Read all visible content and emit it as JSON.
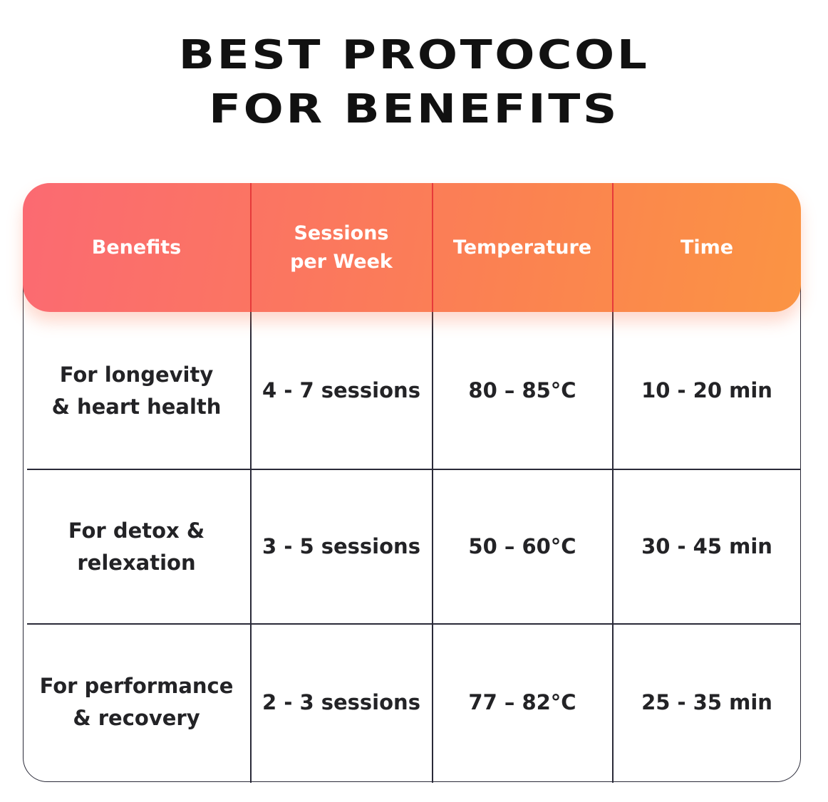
{
  "title": {
    "line1": "BEST PROTOCOL",
    "line2": "FOR BENEFITS"
  },
  "table": {
    "columns": [
      "Benefits",
      "Sessions\nper Week",
      "Temperature",
      "Time"
    ],
    "rows": [
      {
        "benefit": "For longevity\n& heart health",
        "sessions": "4 - 7 sessions",
        "temperature": "80 – 85°C",
        "time": "10 - 20 min"
      },
      {
        "benefit": "For detox &\nrelexation",
        "sessions": "3 - 5 sessions",
        "temperature": "50 – 60°C",
        "time": "30 - 45 min"
      },
      {
        "benefit": "For performance\n& recovery",
        "sessions": "2 - 3 sessions",
        "temperature": "77 – 82°C",
        "time": "25 - 35 min"
      }
    ]
  },
  "colors": {
    "header_gradient_start": "#fb6a72",
    "header_gradient_end": "#fb9443",
    "header_separator": "#e63a3a",
    "grid_line": "#2a2a38",
    "text": "#232326"
  }
}
